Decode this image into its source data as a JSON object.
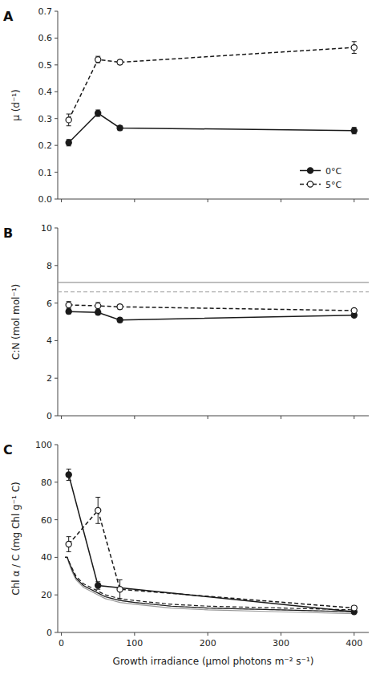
{
  "chart_data": [
    {
      "type": "line",
      "title": "A",
      "ylabel": "μ (d⁻¹)",
      "x": [
        10,
        50,
        80,
        400
      ],
      "series": [
        {
          "name": "0°C",
          "color": "#1a1a1a",
          "marker": "circle",
          "line_style": "solid",
          "values": [
            0.21,
            0.32,
            0.265,
            0.255
          ],
          "errors": [
            0.012,
            0.012,
            0.008,
            0.012
          ]
        },
        {
          "name": "5°C",
          "color": "#1a1a1a",
          "marker": "circle-open",
          "line_style": "dashed",
          "values": [
            0.295,
            0.52,
            0.51,
            0.565
          ],
          "errors": [
            0.022,
            0.012,
            0.008,
            0.022
          ]
        }
      ],
      "xlim": [
        -5,
        420
      ],
      "xticks": [
        0,
        100,
        200,
        300,
        400
      ],
      "ylim": [
        0.0,
        0.7
      ],
      "yticks": [
        {
          "value": 0.0,
          "label": "0.0"
        },
        0.1,
        0.2,
        0.3,
        0.4,
        0.5,
        0.6,
        0.7
      ],
      "tick_labels": "y",
      "legend": "lower right"
    },
    {
      "type": "line",
      "title": "B",
      "ylabel": "C:N (mol mol⁻¹)",
      "x": [
        10,
        50,
        80,
        400
      ],
      "reference_lines": [
        {
          "value": 7.1,
          "color": "#999999",
          "line_style": "solid"
        },
        {
          "value": 6.6,
          "color": "#b0b0b0",
          "line_style": "dashed"
        }
      ],
      "series": [
        {
          "color": "#1a1a1a",
          "marker": "circle",
          "line_style": "solid",
          "values": [
            5.55,
            5.5,
            5.1,
            5.35
          ],
          "errors": [
            0.12,
            0.12,
            0.1,
            0.08
          ]
        },
        {
          "color": "#1a1a1a",
          "marker": "circle-open",
          "line_style": "dashed",
          "values": [
            5.9,
            5.85,
            5.8,
            5.6
          ],
          "errors": [
            0.18,
            0.18,
            0.12,
            0.08
          ]
        }
      ],
      "xlim": [
        -5,
        420
      ],
      "xticks": [
        0,
        100,
        200,
        300,
        400
      ],
      "ylim": [
        0,
        10
      ],
      "yticks": [
        0,
        2,
        4,
        6,
        8,
        10
      ],
      "tick_labels": "y"
    },
    {
      "type": "line",
      "title": "C",
      "ylabel": "Chl α / C (mg Chl g⁻¹ C)",
      "xlabel": "Growth irradiance (μmol photons m⁻² s⁻¹)",
      "series": [
        {
          "color": "#999999",
          "marker": "none",
          "line_style": "solid",
          "x": [
            5,
            8,
            10,
            15,
            20,
            30,
            40,
            50,
            60,
            70,
            80,
            100,
            150,
            200,
            300,
            400
          ],
          "values": [
            40,
            40,
            37,
            32,
            28,
            24,
            22,
            20,
            18,
            17,
            16,
            15,
            13,
            12,
            11,
            10
          ]
        },
        {
          "color": "#b0b0b0",
          "marker": "none",
          "line_style": "dashed",
          "x": [
            5,
            8,
            10,
            15,
            20,
            30,
            40,
            50,
            60,
            70,
            80,
            100,
            150,
            200,
            300,
            400
          ],
          "values": [
            40,
            40,
            38,
            33,
            29,
            25,
            23,
            21,
            19,
            18,
            17,
            16,
            14,
            13,
            12,
            11
          ]
        },
        {
          "color": "#1a1a1a",
          "marker": "none",
          "line_style": "solid",
          "x": [
            5,
            8,
            10,
            15,
            20,
            30,
            40,
            50,
            60,
            70,
            80,
            100,
            150,
            200,
            300,
            400
          ],
          "values": [
            40,
            40,
            38,
            33,
            29,
            25,
            23,
            21,
            19,
            18,
            17,
            16,
            14,
            13,
            12,
            11
          ]
        },
        {
          "color": "#1a1a1a",
          "marker": "none",
          "line_style": "dashed",
          "x": [
            5,
            8,
            10,
            15,
            20,
            30,
            40,
            50,
            60,
            70,
            80,
            100,
            150,
            200,
            300,
            400
          ],
          "values": [
            40,
            40,
            38,
            34,
            30,
            26,
            24,
            22,
            20,
            19,
            18,
            17,
            15,
            14,
            13,
            12
          ]
        },
        {
          "color": "#1a1a1a",
          "marker": "circle",
          "line_style": "solid",
          "x": [
            10,
            50,
            400
          ],
          "values": [
            84,
            25,
            11
          ],
          "errors": [
            3,
            2,
            1
          ]
        },
        {
          "color": "#1a1a1a",
          "marker": "circle-open",
          "line_style": "dashed",
          "x": [
            10,
            50,
            80,
            400
          ],
          "values": [
            47,
            65,
            23,
            13
          ],
          "errors": [
            4,
            7,
            5,
            1
          ]
        }
      ],
      "xlim": [
        -5,
        420
      ],
      "xticks": [
        0,
        100,
        200,
        300,
        400
      ],
      "ylim": [
        0,
        100
      ],
      "yticks": [
        0,
        20,
        40,
        60,
        80,
        100
      ]
    }
  ]
}
